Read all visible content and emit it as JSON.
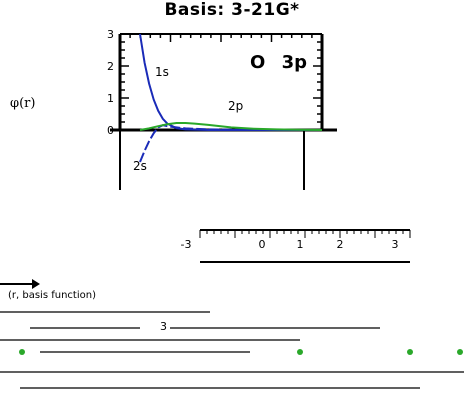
{
  "title": "Basis: 3-21G*",
  "species_label": "O",
  "state_label": "3p",
  "y_axis_label": "φ(r)",
  "bottom_caption": "(r, basis function)",
  "chart_data": {
    "type": "line",
    "title": "Basis: 3-21G*",
    "ylabel": "φ(r)",
    "xlabel": "",
    "ylim": [
      -3,
      3
    ],
    "y_ticks": [
      "3",
      "2",
      "1",
      "0"
    ],
    "series": [
      {
        "name": "1s",
        "color": "#1a2bb8",
        "x": [
          0.0,
          0.1,
          0.2,
          0.3,
          0.4,
          0.5,
          0.6,
          0.8,
          1.0,
          1.5,
          2.0,
          3.0,
          4.0
        ],
        "y": [
          3.0,
          2.1,
          1.45,
          0.95,
          0.6,
          0.35,
          0.2,
          0.06,
          0.02,
          0.0,
          0.0,
          0.0,
          0.0
        ]
      },
      {
        "name": "2s",
        "color": "#1a2bb8",
        "x": [
          0.0,
          0.1,
          0.2,
          0.3,
          0.4,
          0.5,
          0.6,
          0.8,
          1.0,
          1.5,
          2.0,
          3.0,
          4.0
        ],
        "y": [
          -1.0,
          -0.65,
          -0.35,
          -0.1,
          0.08,
          0.15,
          0.12,
          0.08,
          0.05,
          0.02,
          0.01,
          0.0,
          0.0
        ]
      },
      {
        "name": "2p",
        "color": "#2aa82a",
        "x": [
          0.0,
          0.2,
          0.4,
          0.6,
          0.8,
          1.0,
          1.2,
          1.5,
          2.0,
          2.5,
          3.0,
          3.5,
          4.0
        ],
        "y": [
          0.0,
          0.05,
          0.12,
          0.18,
          0.22,
          0.22,
          0.2,
          0.16,
          0.08,
          0.04,
          0.02,
          0.01,
          0.0
        ]
      }
    ],
    "xlim": [
      0,
      4
    ],
    "grid": false,
    "legend": "inline labels"
  },
  "lower_panel": {
    "tick_labels": [
      "-3",
      "0",
      "1",
      "2",
      "3"
    ],
    "marker_label": "3"
  }
}
